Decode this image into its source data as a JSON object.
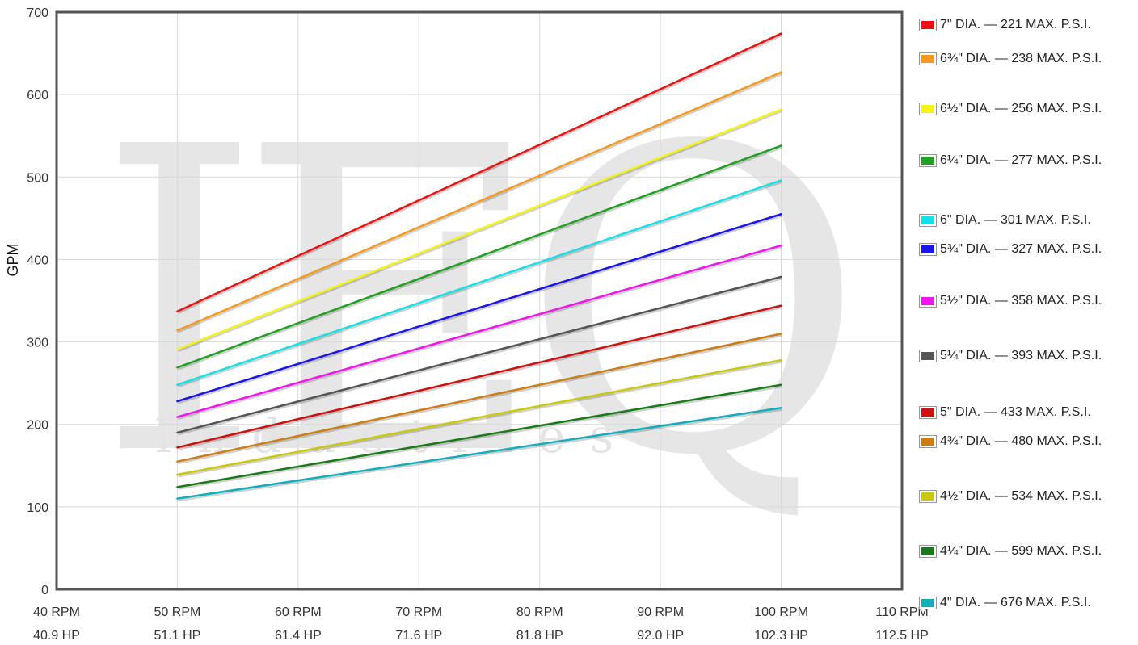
{
  "watermark": {
    "logo": "IEQ",
    "subtitle": "Industries"
  },
  "chart_data": {
    "type": "line",
    "xlabel": "",
    "ylabel": "GPM",
    "xlim": [
      40,
      110
    ],
    "ylim": [
      0,
      700
    ],
    "grid": true,
    "legend_position": "right",
    "x_ticks": [
      {
        "value": 40,
        "rpm": "40 RPM",
        "hp": "40.9 HP"
      },
      {
        "value": 50,
        "rpm": "50 RPM",
        "hp": "51.1 HP"
      },
      {
        "value": 60,
        "rpm": "60 RPM",
        "hp": "61.4 HP"
      },
      {
        "value": 70,
        "rpm": "70 RPM",
        "hp": "71.6 HP"
      },
      {
        "value": 80,
        "rpm": "80 RPM",
        "hp": "81.8 HP"
      },
      {
        "value": 90,
        "rpm": "90 RPM",
        "hp": "92.0 HP"
      },
      {
        "value": 100,
        "rpm": "100 RPM",
        "hp": "102.3 HP"
      },
      {
        "value": 110,
        "rpm": "110 RPM",
        "hp": "112.5 HP"
      }
    ],
    "y_ticks": [
      0,
      100,
      200,
      300,
      400,
      500,
      600,
      700
    ],
    "x": [
      50,
      100
    ],
    "series": [
      {
        "name": "7\" DIA. — 221 MAX. P.S.I.",
        "color": "#ee1111",
        "values": [
          337,
          674
        ]
      },
      {
        "name": "6¾\" DIA. — 238 MAX. P.S.I.",
        "color": "#f59a1f",
        "values": [
          314,
          627
        ]
      },
      {
        "name": "6½\" DIA. — 256 MAX. P.S.I.",
        "color": "#f5f514",
        "values": [
          291,
          582
        ]
      },
      {
        "name": "6¼\" DIA. — 277 MAX. P.S.I.",
        "color": "#22a022",
        "values": [
          269,
          538
        ]
      },
      {
        "name": "6\" DIA. — 301 MAX. P.S.I.",
        "color": "#15e0e6",
        "values": [
          248,
          496
        ]
      },
      {
        "name": "5¾\" DIA. — 327 MAX. P.S.I.",
        "color": "#1a14ee",
        "values": [
          228,
          455
        ]
      },
      {
        "name": "5½\" DIA. — 358 MAX. P.S.I.",
        "color": "#f015ee",
        "values": [
          209,
          417
        ]
      },
      {
        "name": "5¼\" DIA. — 393 MAX. P.S.I.",
        "color": "#555555",
        "values": [
          190,
          379
        ]
      },
      {
        "name": "5\" DIA. — 433 MAX. P.S.I.",
        "color": "#cc1111",
        "values": [
          172,
          344
        ]
      },
      {
        "name": "4¾\" DIA. — 480 MAX. P.S.I.",
        "color": "#cc7d14",
        "values": [
          155,
          310
        ]
      },
      {
        "name": "4½\" DIA. — 534 MAX. P.S.I.",
        "color": "#c9c80e",
        "values": [
          139,
          278
        ]
      },
      {
        "name": "4¼\" DIA. — 599 MAX. P.S.I.",
        "color": "#1a7a1a",
        "values": [
          124,
          248
        ]
      },
      {
        "name": "4\" DIA. — 676 MAX. P.S.I.",
        "color": "#14aebb",
        "values": [
          110,
          220
        ]
      }
    ]
  }
}
